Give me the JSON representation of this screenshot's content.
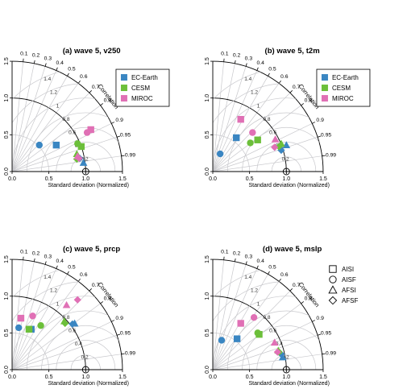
{
  "colors": {
    "EC-Earth": "#3a86c2",
    "CESM": "#6cbf3a",
    "MIROC": "#e070b5",
    "grid": "#c8c8cc",
    "rms": "#a8a8e6",
    "axis": "#000000"
  },
  "correlation_label": "Correlation",
  "xlabel": "Standard deviation (Normalized)",
  "ylabel": "Standard deviation (Normalized)",
  "ticks": [
    "0.0",
    "0.5",
    "1.0",
    "1.5"
  ],
  "corr_ticks": [
    "0.1",
    "0.2",
    "0.3",
    "0.4",
    "0.5",
    "0.6",
    "0.7",
    "0.8",
    "0.9",
    "0.95",
    "0.99"
  ],
  "rms_ticks": [
    "0.2",
    "0.4",
    "0.6",
    "0.8",
    "1",
    "1.2",
    "1.4"
  ],
  "legend_models": [
    "EC-Earth",
    "CESM",
    "MIROC"
  ],
  "legend_experiments": [
    "AISI",
    "AISF",
    "AFSI",
    "AFSF"
  ],
  "chart_data": [
    {
      "type": "scatter",
      "title": "(a) wave 5, v250",
      "xlim": [
        0,
        1.5
      ],
      "ylim": [
        0,
        1.5
      ],
      "legend": "models",
      "points": [
        {
          "model": "EC-Earth",
          "exp": "AISF",
          "x": 0.37,
          "y": 0.36
        },
        {
          "model": "EC-Earth",
          "exp": "AISI",
          "x": 0.6,
          "y": 0.36
        },
        {
          "model": "EC-Earth",
          "exp": "AFSI",
          "x": 0.97,
          "y": 0.12
        },
        {
          "model": "EC-Earth",
          "exp": "AFSF",
          "x": 0.92,
          "y": 0.18
        },
        {
          "model": "CESM",
          "exp": "AISF",
          "x": 0.89,
          "y": 0.38
        },
        {
          "model": "CESM",
          "exp": "AISI",
          "x": 0.94,
          "y": 0.34
        },
        {
          "model": "CESM",
          "exp": "AFSI",
          "x": 0.88,
          "y": 0.24
        },
        {
          "model": "CESM",
          "exp": "AFSF",
          "x": 0.88,
          "y": 0.17
        },
        {
          "model": "MIROC",
          "exp": "AISI",
          "x": 1.07,
          "y": 0.57
        },
        {
          "model": "MIROC",
          "exp": "AISF",
          "x": 1.02,
          "y": 0.53
        },
        {
          "model": "MIROC",
          "exp": "AFSI",
          "x": 0.89,
          "y": 0.21
        },
        {
          "model": "MIROC",
          "exp": "AFSF",
          "x": 0.91,
          "y": 0.18
        }
      ]
    },
    {
      "type": "scatter",
      "title": "(b) wave 5, t2m",
      "xlim": [
        0,
        1.5
      ],
      "ylim": [
        0,
        1.5
      ],
      "legend": "models",
      "points": [
        {
          "model": "EC-Earth",
          "exp": "AISF",
          "x": 0.1,
          "y": 0.24
        },
        {
          "model": "EC-Earth",
          "exp": "AISI",
          "x": 0.32,
          "y": 0.46
        },
        {
          "model": "EC-Earth",
          "exp": "AFSI",
          "x": 1.0,
          "y": 0.36
        },
        {
          "model": "EC-Earth",
          "exp": "AFSF",
          "x": 0.93,
          "y": 0.29
        },
        {
          "model": "CESM",
          "exp": "AISF",
          "x": 0.51,
          "y": 0.39
        },
        {
          "model": "CESM",
          "exp": "AISI",
          "x": 0.61,
          "y": 0.43
        },
        {
          "model": "CESM",
          "exp": "AFSI",
          "x": 0.93,
          "y": 0.38
        },
        {
          "model": "CESM",
          "exp": "AFSF",
          "x": 0.9,
          "y": 0.34
        },
        {
          "model": "MIROC",
          "exp": "AISI",
          "x": 0.38,
          "y": 0.71
        },
        {
          "model": "MIROC",
          "exp": "AISF",
          "x": 0.54,
          "y": 0.53
        },
        {
          "model": "MIROC",
          "exp": "AFSI",
          "x": 0.85,
          "y": 0.44
        },
        {
          "model": "MIROC",
          "exp": "AFSF",
          "x": 0.84,
          "y": 0.33
        }
      ]
    },
    {
      "type": "scatter",
      "title": "(c) wave 5, prcp",
      "xlim": [
        0,
        1.5
      ],
      "ylim": [
        0,
        1.5
      ],
      "legend": "none",
      "points": [
        {
          "model": "EC-Earth",
          "exp": "AISF",
          "x": 0.09,
          "y": 0.57
        },
        {
          "model": "EC-Earth",
          "exp": "AISI",
          "x": 0.26,
          "y": 0.55
        },
        {
          "model": "EC-Earth",
          "exp": "AFSI",
          "x": 0.85,
          "y": 0.63
        },
        {
          "model": "EC-Earth",
          "exp": "AFSF",
          "x": 0.82,
          "y": 0.62
        },
        {
          "model": "CESM",
          "exp": "AISF",
          "x": 0.39,
          "y": 0.6
        },
        {
          "model": "CESM",
          "exp": "AISI",
          "x": 0.23,
          "y": 0.55
        },
        {
          "model": "CESM",
          "exp": "AFSI",
          "x": 0.71,
          "y": 0.66
        },
        {
          "model": "CESM",
          "exp": "AFSF",
          "x": 0.72,
          "y": 0.63
        },
        {
          "model": "MIROC",
          "exp": "AISI",
          "x": 0.12,
          "y": 0.7
        },
        {
          "model": "MIROC",
          "exp": "AISF",
          "x": 0.28,
          "y": 0.73
        },
        {
          "model": "MIROC",
          "exp": "AFSI",
          "x": 0.74,
          "y": 0.88
        },
        {
          "model": "MIROC",
          "exp": "AFSF",
          "x": 0.89,
          "y": 0.95
        }
      ]
    },
    {
      "type": "scatter",
      "title": "(d) wave 5, mslp",
      "xlim": [
        0,
        1.5
      ],
      "ylim": [
        0,
        1.5
      ],
      "legend": "experiments",
      "points": [
        {
          "model": "EC-Earth",
          "exp": "AISF",
          "x": 0.12,
          "y": 0.4
        },
        {
          "model": "EC-Earth",
          "exp": "AISI",
          "x": 0.33,
          "y": 0.42
        },
        {
          "model": "EC-Earth",
          "exp": "AFSI",
          "x": 0.95,
          "y": 0.17
        },
        {
          "model": "EC-Earth",
          "exp": "AFSF",
          "x": 0.93,
          "y": 0.21
        },
        {
          "model": "CESM",
          "exp": "AISF",
          "x": 0.61,
          "y": 0.5
        },
        {
          "model": "CESM",
          "exp": "AISI",
          "x": 0.63,
          "y": 0.48
        },
        {
          "model": "CESM",
          "exp": "AFSI",
          "x": 0.89,
          "y": 0.26
        },
        {
          "model": "CESM",
          "exp": "AFSF",
          "x": 0.9,
          "y": 0.24
        },
        {
          "model": "MIROC",
          "exp": "AISI",
          "x": 0.38,
          "y": 0.63
        },
        {
          "model": "MIROC",
          "exp": "AISF",
          "x": 0.56,
          "y": 0.71
        },
        {
          "model": "MIROC",
          "exp": "AFSI",
          "x": 0.84,
          "y": 0.37
        },
        {
          "model": "MIROC",
          "exp": "AFSF",
          "x": 0.88,
          "y": 0.24
        }
      ]
    }
  ]
}
